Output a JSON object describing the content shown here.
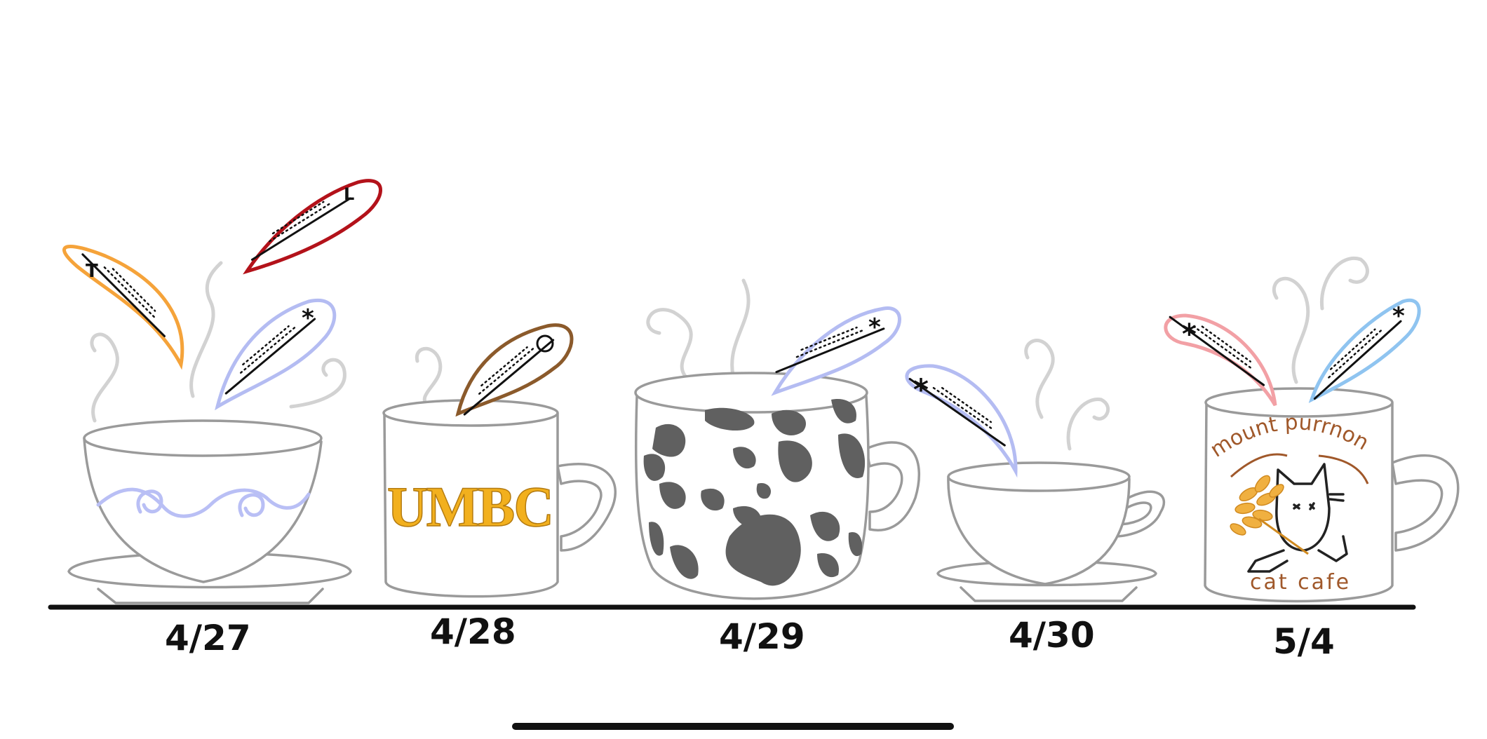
{
  "dates": [
    "4/27",
    "4/28",
    "4/29",
    "4/30",
    "5/4"
  ],
  "mugs": [
    {
      "date": "4/27",
      "style": "wave-pattern teacup with saucer"
    },
    {
      "date": "4/28",
      "brand": "UMBC"
    },
    {
      "date": "4/29",
      "style": "cow-print mug"
    },
    {
      "date": "4/30",
      "style": "plain teacup with saucer"
    },
    {
      "date": "5/4",
      "top_text": "mount purrnon",
      "bottom_text": "cat cafe"
    }
  ],
  "colors": {
    "orange": "#f5a33a",
    "red": "#b3121a",
    "lavender": "#b4bcf2",
    "brown": "#8b5a2b",
    "pink": "#f2a0a5",
    "sky": "#8fc4f0",
    "umbc_gold": "#f2b01e",
    "wave": "#b9bff5",
    "cowspot": "#606060"
  }
}
